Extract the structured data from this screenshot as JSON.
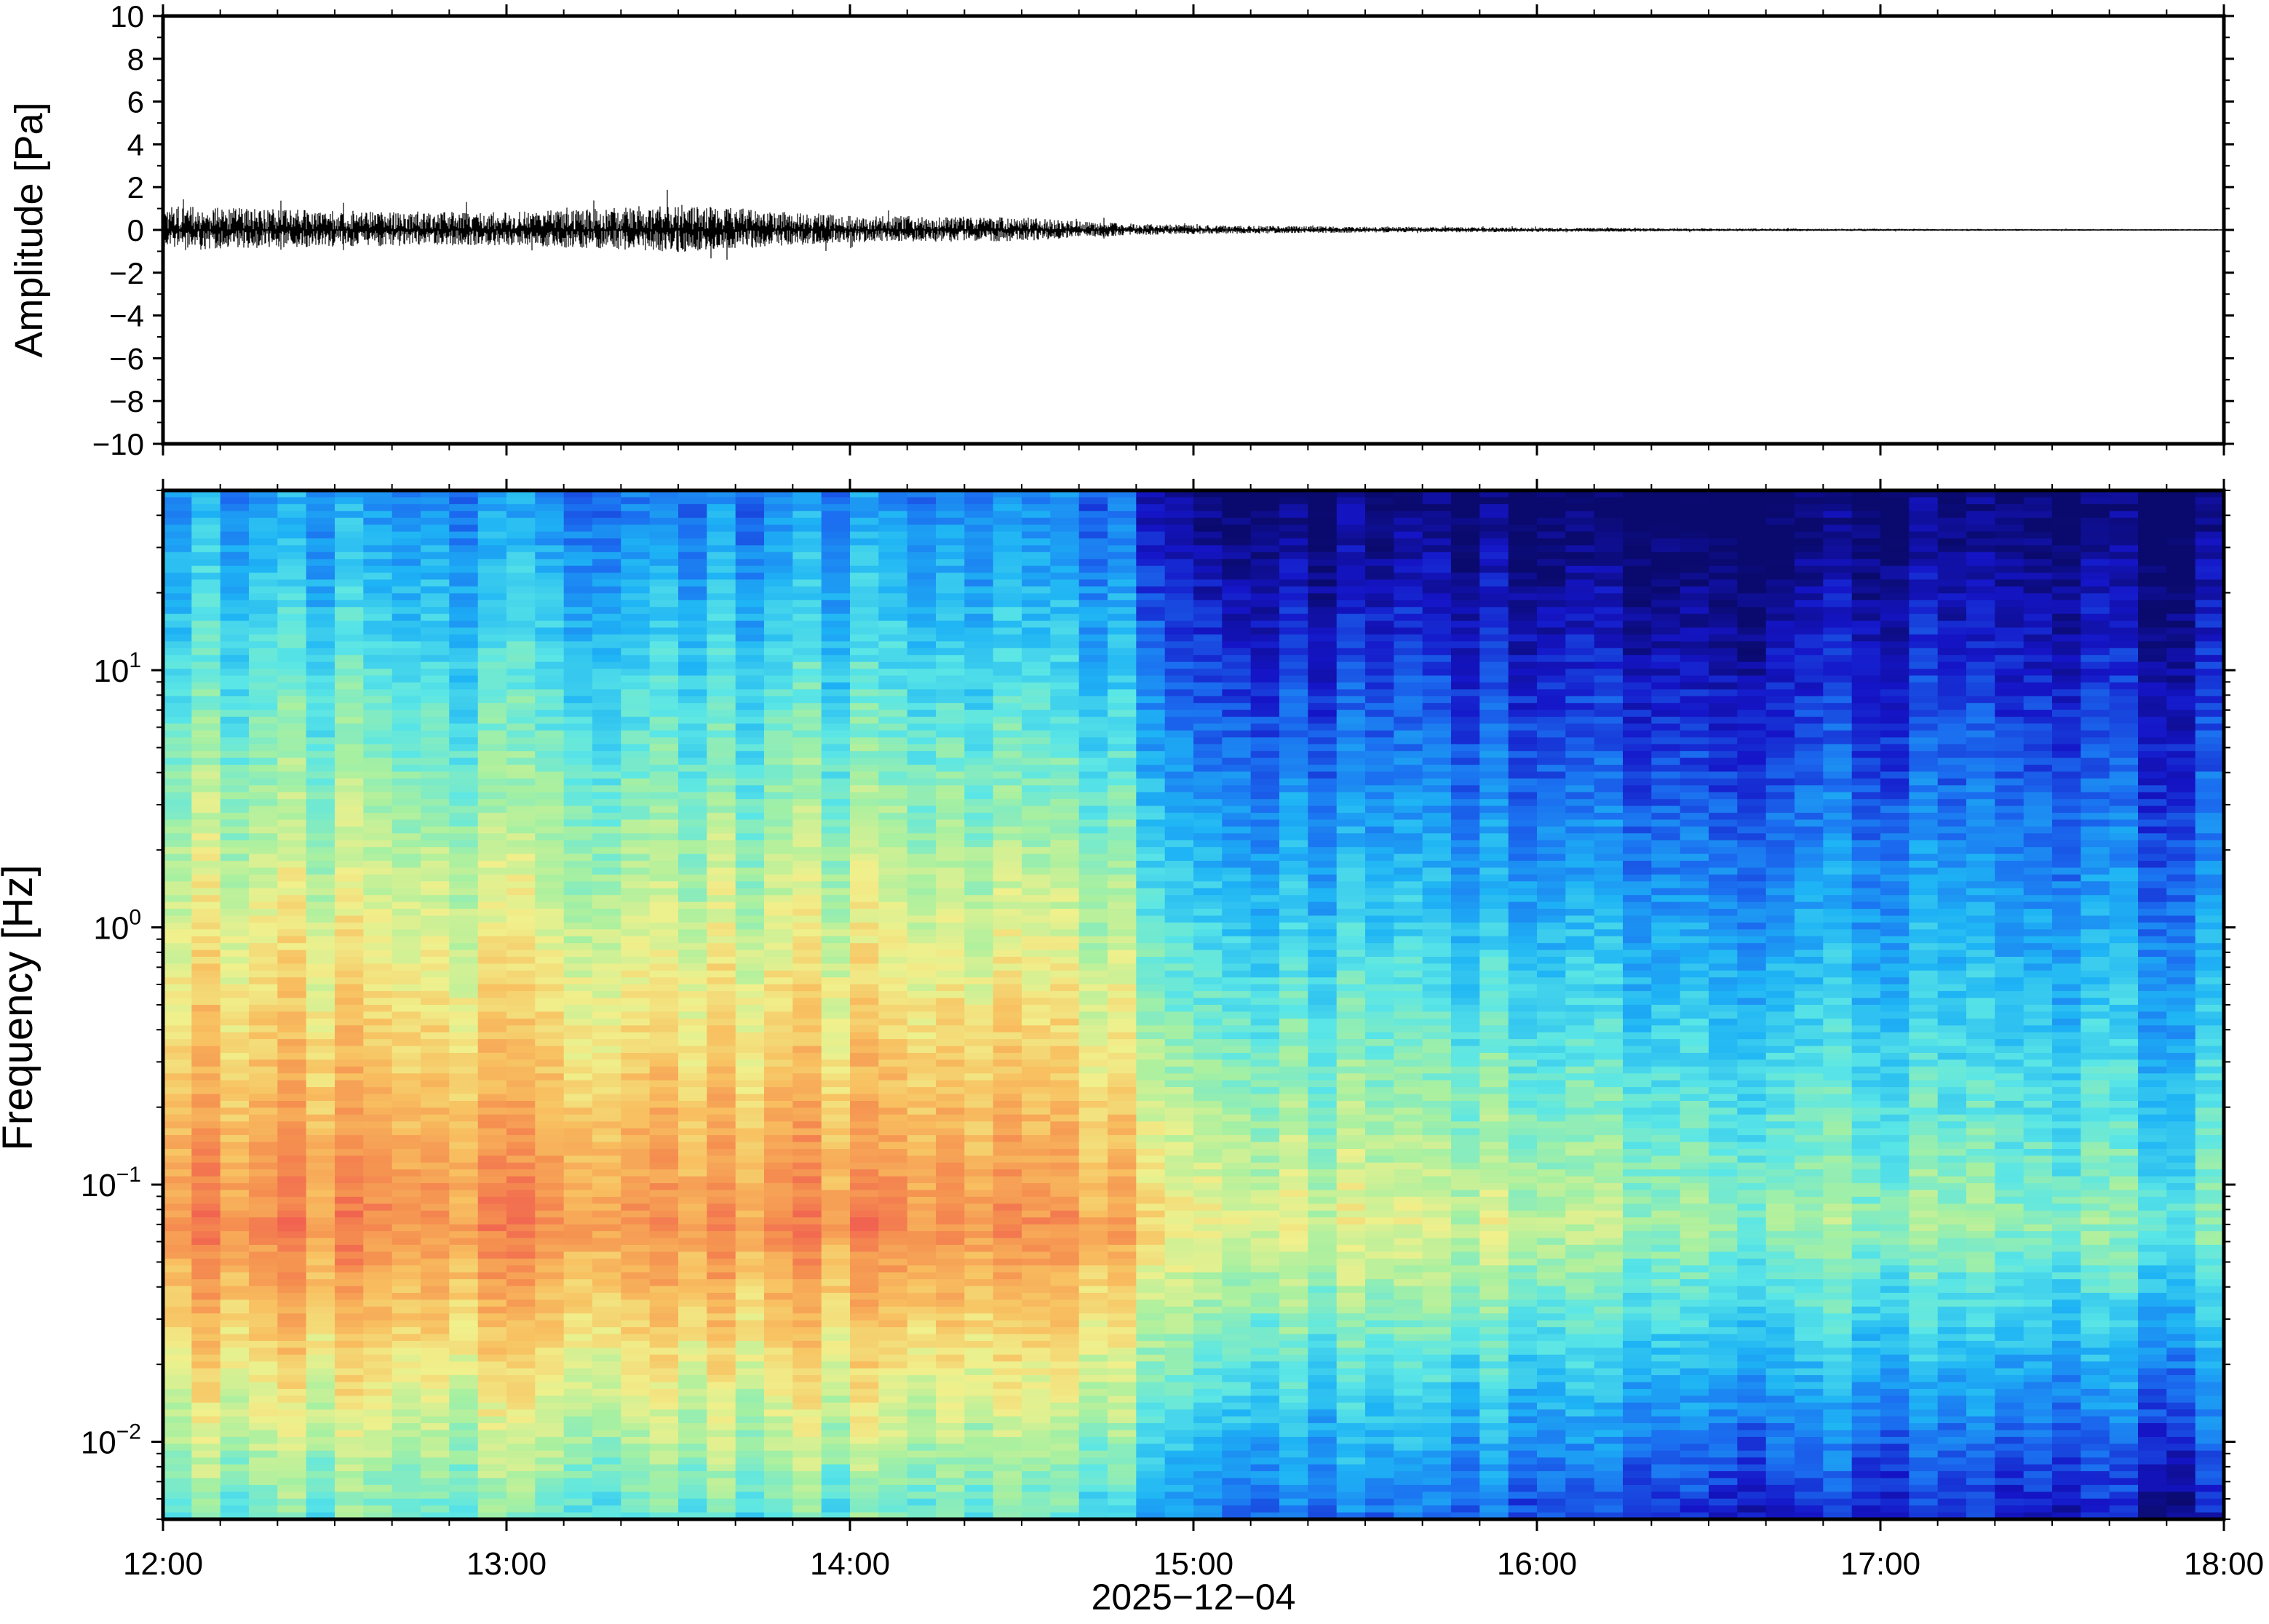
{
  "chart_data": [
    {
      "type": "line",
      "title": "",
      "ylabel": "Amplitude [Pa]",
      "ylim": [
        -10,
        10
      ],
      "yticks": [
        "10",
        "8",
        "6",
        "4",
        "2",
        "0",
        "−2",
        "−4",
        "−6",
        "−8",
        "−10"
      ],
      "xlim": [
        "2025-12-04 12:00",
        "2025-12-04 18:00"
      ],
      "grid": false,
      "series": [
        {
          "envelope": {
            "description_times_hours": [
              12.0,
              12.5,
              13.0,
              13.5,
              14.0,
              14.5,
              14.8,
              15.0,
              15.5,
              16.0,
              16.5,
              17.0,
              17.5,
              18.0
            ],
            "max_abs_amplitude_pa": [
              1.5,
              1.2,
              1.1,
              1.6,
              0.9,
              0.8,
              0.4,
              0.3,
              0.2,
              0.15,
              0.1,
              0.08,
              0.06,
              0.05
            ]
          }
        }
      ]
    },
    {
      "type": "heatmap",
      "title": "",
      "ylabel": "Frequency [Hz]",
      "yscale": "log",
      "ylim": [
        0.005,
        50
      ],
      "yticks": [
        {
          "value": 10,
          "base": "10",
          "exp": "1"
        },
        {
          "value": 1,
          "base": "10",
          "exp": "0"
        },
        {
          "value": 0.1,
          "base": "10",
          "exp": "−1"
        },
        {
          "value": 0.01,
          "base": "10",
          "exp": "−2"
        }
      ],
      "xlabel": "2025−12−04",
      "xticks": [
        "12:00",
        "13:00",
        "14:00",
        "15:00",
        "16:00",
        "17:00",
        "18:00"
      ],
      "xlim": [
        "12:00",
        "18:00"
      ],
      "colormap": [
        "#0a0a6e",
        "#1515c8",
        "#1b6ef0",
        "#1eb4f5",
        "#5ae6e6",
        "#a8f0a0",
        "#f0f08c",
        "#f8c060",
        "#f59050",
        "#f05a50"
      ],
      "power_profile": {
        "times_hours": [
          12.0,
          13.0,
          14.0,
          14.8,
          15.0,
          16.0,
          16.6,
          17.0,
          18.0
        ],
        "peak_band_hz": [
          0.05,
          0.08
        ],
        "relative_peak_level": [
          0.92,
          0.9,
          0.88,
          0.85,
          0.68,
          0.62,
          0.56,
          0.52,
          0.48
        ],
        "high_freq_level": [
          0.35,
          0.3,
          0.28,
          0.25,
          0.05,
          0.03,
          0.0,
          0.0,
          0.0
        ]
      }
    }
  ]
}
